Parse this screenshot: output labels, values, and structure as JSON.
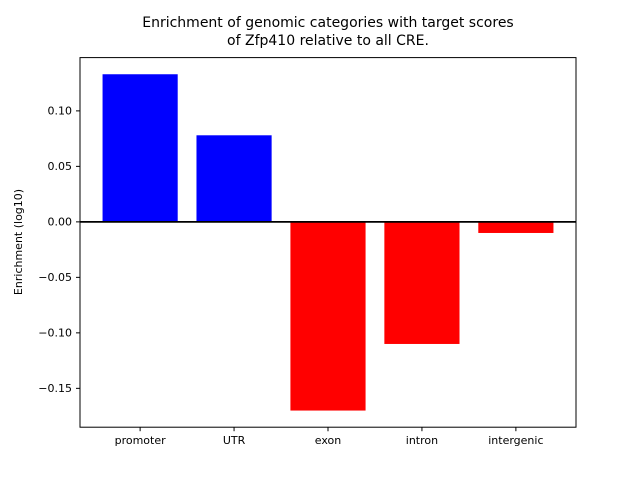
{
  "figure": {
    "background": "#ffffff"
  },
  "chart_data": {
    "type": "bar",
    "title_lines": [
      "Enrichment of genomic categories with target scores",
      "of Zfp410 relative to all CRE."
    ],
    "categories": [
      "promoter",
      "UTR",
      "exon",
      "intron",
      "intergenic"
    ],
    "values": [
      0.133,
      0.078,
      -0.17,
      -0.11,
      -0.01
    ],
    "bar_colors": [
      "#0000ff",
      "#0000ff",
      "#ff0000",
      "#ff0000",
      "#ff0000"
    ],
    "positive_color": "#0000ff",
    "negative_color": "#ff0000",
    "xlabel": "",
    "ylabel": "Enrichment (log10)",
    "yticks": [
      -0.15,
      -0.1,
      -0.05,
      0.0,
      0.05,
      0.1
    ],
    "ytick_labels": [
      "−0.15",
      "−0.10",
      "−0.05",
      "0.00",
      "0.05",
      "0.10"
    ],
    "ylim": [
      -0.185,
      0.148
    ],
    "grid": false,
    "legend": null,
    "zero_line": true,
    "axis_color": "#000000"
  }
}
